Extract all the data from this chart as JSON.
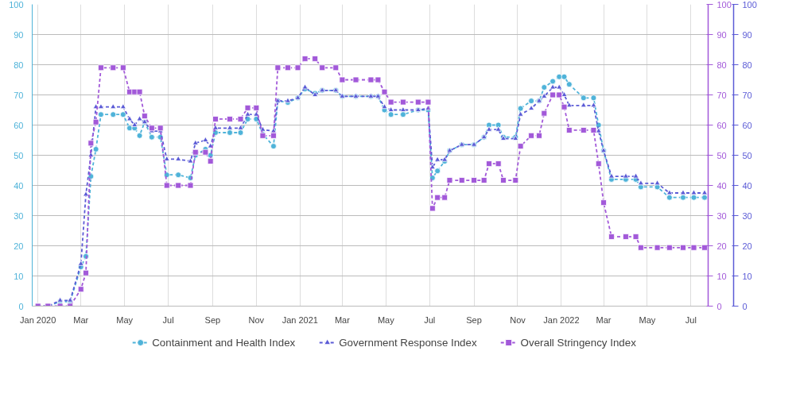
{
  "chart_data": {
    "type": "line",
    "x": [
      "2020-01-01",
      "2020-01-15",
      "2020-02-01",
      "2020-02-15",
      "2020-03-01",
      "2020-03-08",
      "2020-03-15",
      "2020-03-22",
      "2020-03-29",
      "2020-04-15",
      "2020-04-29",
      "2020-05-08",
      "2020-05-15",
      "2020-05-22",
      "2020-05-29",
      "2020-06-08",
      "2020-06-20",
      "2020-06-29",
      "2020-07-15",
      "2020-08-01",
      "2020-08-08",
      "2020-08-22",
      "2020-08-29",
      "2020-09-05",
      "2020-09-25",
      "2020-10-10",
      "2020-10-20",
      "2020-11-01",
      "2020-11-10",
      "2020-11-25",
      "2020-12-01",
      "2020-12-15",
      "2020-12-29",
      "2021-01-08",
      "2021-01-22",
      "2021-02-01",
      "2021-02-20",
      "2021-03-01",
      "2021-03-20",
      "2021-04-10",
      "2021-04-20",
      "2021-04-29",
      "2021-05-08",
      "2021-05-25",
      "2021-06-15",
      "2021-06-29",
      "2021-07-05",
      "2021-07-12",
      "2021-07-22",
      "2021-07-29",
      "2021-08-15",
      "2021-09-01",
      "2021-09-15",
      "2021-09-22",
      "2021-10-05",
      "2021-10-12",
      "2021-10-29",
      "2021-11-05",
      "2021-11-20",
      "2021-12-01",
      "2021-12-08",
      "2021-12-20",
      "2021-12-29",
      "2022-01-05",
      "2022-01-12",
      "2022-02-01",
      "2022-02-15",
      "2022-02-22",
      "2022-03-01",
      "2022-03-12",
      "2022-04-01",
      "2022-04-15",
      "2022-04-22",
      "2022-05-15",
      "2022-06-01",
      "2022-06-20",
      "2022-07-05",
      "2022-07-20"
    ],
    "series": [
      {
        "name": "Containment and Health Index",
        "color": "#4fb3d9",
        "axis": "y",
        "marker": "circle",
        "values": [
          0,
          0,
          1.5,
          1.5,
          13,
          16.5,
          43,
          52,
          63.5,
          63.5,
          63.5,
          59,
          59,
          56.5,
          61,
          56,
          56,
          43.5,
          43.5,
          42.5,
          50,
          52,
          50,
          57.5,
          57.5,
          57.5,
          62,
          62,
          57,
          53,
          68,
          67.5,
          69,
          72,
          70.5,
          71.5,
          71.5,
          69.5,
          69.5,
          69.5,
          69.5,
          65,
          63.5,
          63.5,
          65,
          65,
          42.5,
          44.8,
          48,
          51.5,
          53.5,
          53.5,
          56,
          60,
          60,
          56,
          56,
          65.5,
          68,
          68,
          72.5,
          74.5,
          76,
          76,
          73.5,
          69,
          69,
          60,
          51.5,
          42,
          42,
          42,
          39.5,
          39.5,
          36,
          36,
          36,
          36
        ]
      },
      {
        "name": "Government Response Index",
        "color": "#5b5bd6",
        "axis": "y3",
        "marker": "triangle",
        "values": [
          0,
          0,
          1.9,
          1.9,
          14,
          37,
          50,
          66,
          66,
          66,
          66,
          62,
          60,
          62,
          61,
          58,
          58,
          48.7,
          48.7,
          48,
          54,
          55,
          53,
          59,
          59,
          59,
          63.5,
          63.5,
          58.5,
          58,
          68,
          68,
          69,
          72.5,
          70,
          71.5,
          71.5,
          69.5,
          69.5,
          69.5,
          69.5,
          66,
          65,
          65,
          65,
          65.5,
          46,
          48.5,
          48.5,
          51.5,
          53.5,
          53.5,
          56,
          58.5,
          58.5,
          55.5,
          55.5,
          63.5,
          65.5,
          68,
          69.5,
          72.5,
          72.5,
          70,
          66.5,
          66.5,
          66.5,
          58,
          51.5,
          43,
          43,
          43,
          40.7,
          40.7,
          37.5,
          37.5,
          37.5,
          37.5
        ]
      },
      {
        "name": "Overall Stringency Index",
        "color": "#a259d9",
        "axis": "y2",
        "marker": "square",
        "values": [
          0,
          0,
          0,
          0,
          5.6,
          11,
          54,
          61,
          79,
          79,
          79,
          71,
          71,
          71,
          63,
          59,
          59,
          40,
          40,
          40,
          51,
          51,
          48,
          62,
          62,
          62,
          65.7,
          65.7,
          56.5,
          56.5,
          79,
          79,
          79,
          82,
          82,
          79,
          79,
          75,
          75,
          75,
          75,
          71,
          67.6,
          67.6,
          67.6,
          67.6,
          32.4,
          36,
          36,
          41.7,
          41.7,
          41.7,
          41.7,
          47.2,
          47.2,
          41.7,
          41.7,
          53,
          56.5,
          56.5,
          63.9,
          70,
          70,
          66,
          58.3,
          58.3,
          58.3,
          47.2,
          34.3,
          23,
          23,
          23,
          19.4,
          19.4,
          19.4,
          19.4,
          19.4,
          19.4
        ]
      }
    ],
    "xlim": [
      "2019-12-24",
      "2022-07-25"
    ],
    "xticks": [
      {
        "value": "2020-01-01",
        "label": "Jan 2020"
      },
      {
        "value": "2020-03-01",
        "label": "Mar"
      },
      {
        "value": "2020-05-01",
        "label": "May"
      },
      {
        "value": "2020-07-01",
        "label": "Jul"
      },
      {
        "value": "2020-09-01",
        "label": "Sep"
      },
      {
        "value": "2020-11-01",
        "label": "Nov"
      },
      {
        "value": "2021-01-01",
        "label": "Jan 2021"
      },
      {
        "value": "2021-03-01",
        "label": "Mar"
      },
      {
        "value": "2021-05-01",
        "label": "May"
      },
      {
        "value": "2021-07-01",
        "label": "Jul"
      },
      {
        "value": "2021-09-01",
        "label": "Sep"
      },
      {
        "value": "2021-11-01",
        "label": "Nov"
      },
      {
        "value": "2022-01-01",
        "label": "Jan 2022"
      },
      {
        "value": "2022-03-01",
        "label": "Mar"
      },
      {
        "value": "2022-05-01",
        "label": "May"
      },
      {
        "value": "2022-07-01",
        "label": "Jul"
      }
    ],
    "ylim": [
      0,
      100
    ],
    "yticks": [
      0,
      10,
      20,
      30,
      40,
      50,
      60,
      70,
      80,
      90,
      100
    ],
    "y2lim": [
      0,
      100
    ],
    "y2ticks": [
      0,
      10,
      20,
      30,
      40,
      50,
      60,
      70,
      80,
      90,
      100
    ],
    "y3lim": [
      0,
      100
    ],
    "y3ticks": [
      0,
      10,
      20,
      30,
      40,
      50,
      60,
      70,
      80,
      90,
      100
    ],
    "line_style": "dashed",
    "grid": true,
    "legend": "bottom"
  }
}
